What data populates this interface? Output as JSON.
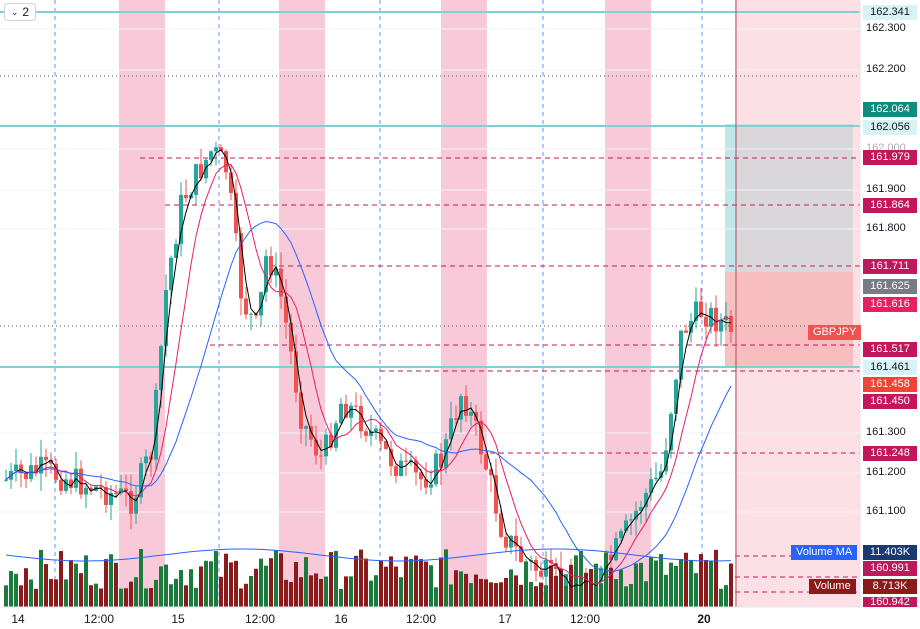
{
  "toolbar": {
    "interval_label": "2",
    "chevron_icon": "chevron-down-icon"
  },
  "symbol": {
    "name": "GBPJPY",
    "color": "#ef5350"
  },
  "colors": {
    "bull": "#26a69a",
    "bear": "#ef5350",
    "vol_bull": "#1b7a3c",
    "vol_bear": "#8b1a1a",
    "session": "#f8c9d8",
    "hline": "#7fcfd6",
    "dashed": "#c2185b",
    "ma_fast": "#000000",
    "ma_mid": "#e91e63",
    "ma_slow": "#2962ff"
  },
  "price_axis": {
    "ticks": [
      "162.300",
      "162.200",
      "162.000",
      "161.900",
      "161.800",
      "161.300",
      "161.200",
      "161.100"
    ],
    "tags": [
      {
        "label": "162.341",
        "bg": "#d8f3f5",
        "fg": "#131722"
      },
      {
        "label": "162.064",
        "bg": "#0e8c7e",
        "fg": "#ffffff"
      },
      {
        "label": "162.056",
        "bg": "#d8f3f5",
        "fg": "#131722"
      },
      {
        "label": "161.979",
        "bg": "#c2185b",
        "fg": "#ffffff"
      },
      {
        "label": "161.864",
        "bg": "#c2185b",
        "fg": "#ffffff"
      },
      {
        "label": "161.711",
        "bg": "#c2185b",
        "fg": "#ffffff"
      },
      {
        "label": "161.625",
        "bg": "#787b86",
        "fg": "#ffffff"
      },
      {
        "label": "161.616",
        "bg": "#e91e63",
        "fg": "#ffffff"
      },
      {
        "label": "161.517",
        "bg": "#c2185b",
        "fg": "#ffffff"
      },
      {
        "label": "161.461",
        "bg": "#d8f3f5",
        "fg": "#131722"
      },
      {
        "label": "161.458",
        "bg": "#f44336",
        "fg": "#ffffff"
      },
      {
        "label": "161.450",
        "bg": "#c2185b",
        "fg": "#ffffff"
      },
      {
        "label": "161.248",
        "bg": "#c2185b",
        "fg": "#ffffff"
      },
      {
        "label": "160.991",
        "bg": "#c2185b",
        "fg": "#ffffff"
      },
      {
        "label": "8.713K",
        "bg": "#8b1a1a",
        "fg": "#ffffff"
      },
      {
        "label": "11.403K",
        "bg": "#1a3a6e",
        "fg": "#ffffff"
      },
      {
        "label": "160.942",
        "bg": "#c2185b",
        "fg": "#ffffff"
      }
    ]
  },
  "time_axis": [
    "14",
    "12:00",
    "15",
    "12:00",
    "16",
    "12:00",
    "17",
    "12:00",
    "20"
  ],
  "legend": {
    "volume_ma_label": "Volume MA",
    "volume_label": "Volume"
  }
}
